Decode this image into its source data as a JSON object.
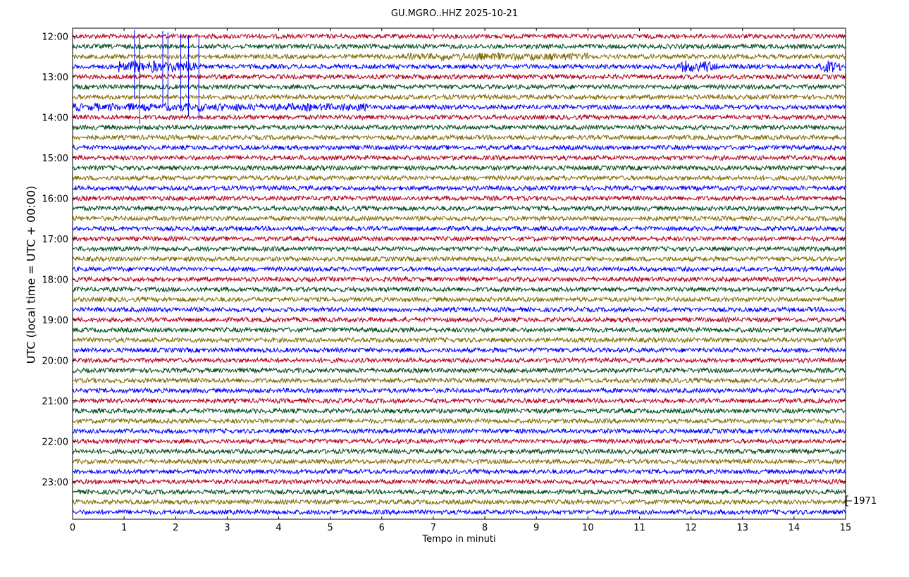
{
  "chart_data": {
    "type": "line",
    "title": "GU.MGRO..HHZ 2025-10-21",
    "xlabel": "Tempo in minuti",
    "ylabel": "UTC (local time = UTC + 00:00)",
    "xlim": [
      0,
      15
    ],
    "x_ticks": [
      "0",
      "1",
      "2",
      "3",
      "4",
      "5",
      "6",
      "7",
      "8",
      "9",
      "10",
      "11",
      "12",
      "13",
      "14",
      "15"
    ],
    "y_ticks": [
      "12:00",
      "13:00",
      "14:00",
      "15:00",
      "16:00",
      "17:00",
      "18:00",
      "19:00",
      "20:00",
      "21:00",
      "22:00",
      "23:00"
    ],
    "trace_start": "12:00",
    "trace_end": "23:45",
    "trace_interval_minutes": 15,
    "trace_colors": [
      "#b2001c",
      "#004c1a",
      "#7f6a00",
      "#0000ff"
    ],
    "scale_label": "1971",
    "grid": false,
    "events": [
      {
        "trace": "12:30",
        "start_min": 6.4,
        "end_min": 10.0,
        "level": "moderate"
      },
      {
        "trace": "12:45",
        "start_min": 0.9,
        "end_min": 2.5,
        "level": "strong"
      },
      {
        "trace": "12:45",
        "start_min": 11.7,
        "end_min": 12.5,
        "level": "strong"
      },
      {
        "trace": "12:45",
        "start_min": 14.5,
        "end_min": 14.9,
        "level": "strong"
      },
      {
        "trace": "13:45",
        "start_min": 0.0,
        "end_min": 5.8,
        "level": "moderate"
      }
    ]
  }
}
